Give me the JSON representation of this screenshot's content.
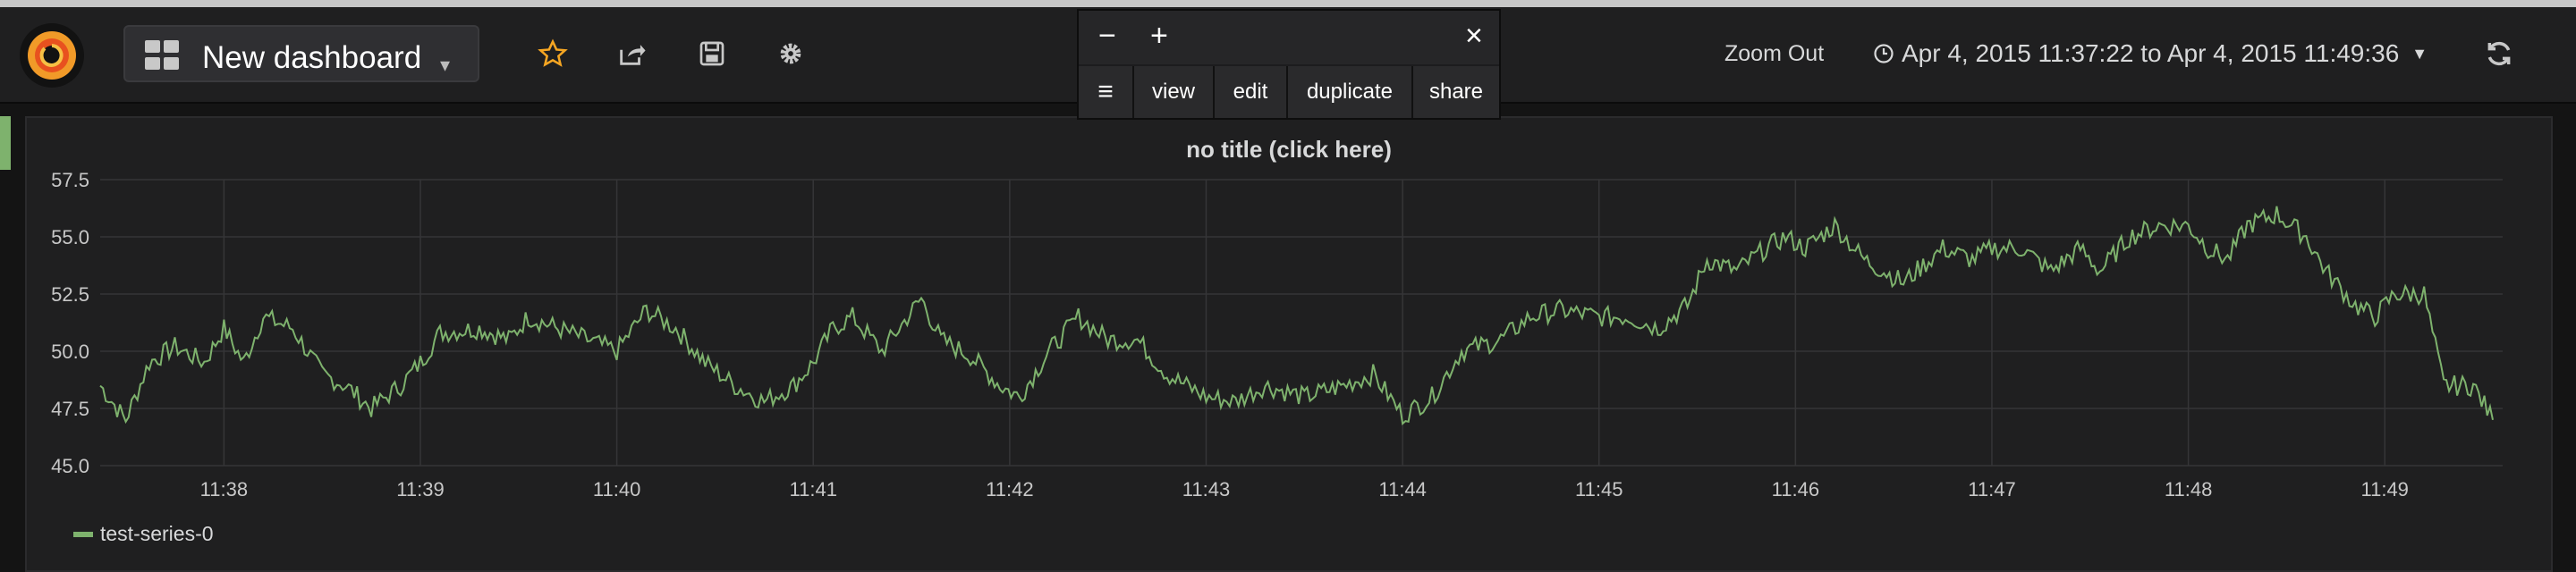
{
  "header": {
    "dashboard_title": "New dashboard",
    "icons": [
      "grafana-logo",
      "grid-icon",
      "star-icon",
      "share-icon",
      "save-icon",
      "gear-icon",
      "clock-icon",
      "refresh-icon"
    ],
    "zoom_out_label": "Zoom Out",
    "time_range": "Apr 4, 2015 11:37:22 to Apr 4, 2015 11:49:36",
    "star_color": "#f5a623"
  },
  "panel_menu": {
    "minus_label": "−",
    "plus_label": "+",
    "close_label": "×",
    "hamburger_label": "≡",
    "items": [
      "view",
      "edit",
      "duplicate",
      "share"
    ]
  },
  "panel": {
    "title": "no title (click here)",
    "legend": [
      {
        "name": "test-series-0",
        "color": "#7eb26d"
      }
    ]
  },
  "chart_data": {
    "type": "line",
    "title": "no title (click here)",
    "xlabel": "",
    "ylabel": "",
    "x_ticks": [
      "11:38",
      "11:39",
      "11:40",
      "11:41",
      "11:42",
      "11:43",
      "11:44",
      "11:45",
      "11:46",
      "11:47",
      "11:48",
      "11:49"
    ],
    "y_ticks": [
      "45.0",
      "47.5",
      "50.0",
      "52.5",
      "55.0",
      "57.5"
    ],
    "ylim": [
      45,
      57.5
    ],
    "xlim_minutes": [
      37.37,
      49.6
    ],
    "grid": true,
    "legend_position": "bottom-left",
    "series": [
      {
        "name": "test-series-0",
        "color": "#7eb26d",
        "x_minutes": [
          37.37,
          37.5,
          37.62,
          37.75,
          37.9,
          38.0,
          38.1,
          38.2,
          38.35,
          38.5,
          38.62,
          38.75,
          38.9,
          39.0,
          39.1,
          39.3,
          39.45,
          39.55,
          39.7,
          39.85,
          40.0,
          40.15,
          40.3,
          40.45,
          40.6,
          40.75,
          40.9,
          41.0,
          41.1,
          41.2,
          41.35,
          41.55,
          41.65,
          41.8,
          41.95,
          42.05,
          42.2,
          42.35,
          42.5,
          42.65,
          42.8,
          43.0,
          43.15,
          43.3,
          43.5,
          43.7,
          43.85,
          44.0,
          44.15,
          44.3,
          44.5,
          44.65,
          44.8,
          45.0,
          45.15,
          45.3,
          45.45,
          45.55,
          45.7,
          45.85,
          45.95,
          46.05,
          46.2,
          46.35,
          46.55,
          46.75,
          46.9,
          47.0,
          47.15,
          47.3,
          47.45,
          47.55,
          47.7,
          47.85,
          48.0,
          48.1,
          48.2,
          48.3,
          48.45,
          48.6,
          48.7,
          48.85,
          48.95,
          49.05,
          49.2,
          49.3,
          49.45,
          49.55
        ],
        "values": [
          48.5,
          47.0,
          49.5,
          50.2,
          49.5,
          51.0,
          49.5,
          51.5,
          51.0,
          49.0,
          48.5,
          47.5,
          48.5,
          49.5,
          50.8,
          51.0,
          50.5,
          51.5,
          51.0,
          50.5,
          50.0,
          51.8,
          51.0,
          49.5,
          48.5,
          47.8,
          48.5,
          49.5,
          51.0,
          51.5,
          50.0,
          52.3,
          50.5,
          49.8,
          48.5,
          48.0,
          50.0,
          51.5,
          50.5,
          50.5,
          49.0,
          48.0,
          47.8,
          48.5,
          48.0,
          48.5,
          49.0,
          47.2,
          48.0,
          50.0,
          50.5,
          51.5,
          51.8,
          51.5,
          51.5,
          51.0,
          52.0,
          54.0,
          53.5,
          54.5,
          55.0,
          54.5,
          55.5,
          54.0,
          53.0,
          54.5,
          54.0,
          54.5,
          54.5,
          53.5,
          54.5,
          53.5,
          55.0,
          55.5,
          55.5,
          54.5,
          54.0,
          55.5,
          56.0,
          55.0,
          53.5,
          52.0,
          51.5,
          52.5,
          52.5,
          48.5,
          48.5,
          47.0
        ]
      }
    ]
  }
}
